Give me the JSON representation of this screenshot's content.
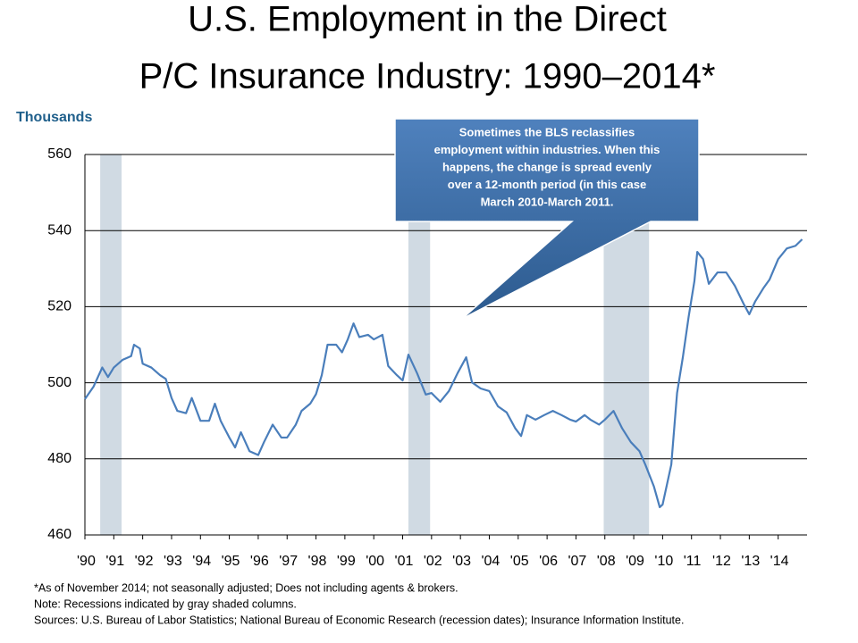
{
  "chart_data": {
    "type": "line",
    "title": [
      "U.S. Employment in the Direct",
      "P/C Insurance Industry: 1990–2014*"
    ],
    "y_label": "Thousands",
    "x": [
      1990.0,
      1990.3,
      1990.6,
      1990.8,
      1991.0,
      1991.3,
      1991.6,
      1991.7,
      1991.9,
      1992.0,
      1992.3,
      1992.6,
      1992.8,
      1993.0,
      1993.2,
      1993.5,
      1993.7,
      1994.0,
      1994.3,
      1994.5,
      1994.7,
      1995.0,
      1995.2,
      1995.4,
      1995.7,
      1996.0,
      1996.2,
      1996.5,
      1996.8,
      1997.0,
      1997.3,
      1997.5,
      1997.8,
      1998.0,
      1998.2,
      1998.4,
      1998.7,
      1998.9,
      1999.1,
      1999.3,
      1999.5,
      1999.8,
      2000.0,
      2000.3,
      2000.5,
      2000.8,
      2001.0,
      2001.2,
      2001.5,
      2001.8,
      2002.0,
      2002.3,
      2002.6,
      2002.9,
      2003.2,
      2003.4,
      2003.7,
      2004.0,
      2004.3,
      2004.6,
      2004.9,
      2005.1,
      2005.3,
      2005.6,
      2005.9,
      2006.2,
      2006.5,
      2006.8,
      2007.0,
      2007.3,
      2007.5,
      2007.8,
      2008.0,
      2008.3,
      2008.6,
      2008.9,
      2009.2,
      2009.4,
      2009.7,
      2009.9,
      2010.0,
      2010.3,
      2010.5,
      2010.7,
      2010.9,
      2011.1,
      2011.2,
      2011.4,
      2011.6,
      2011.9,
      2012.2,
      2012.5,
      2012.8,
      2013.0,
      2013.2,
      2013.5,
      2013.7,
      2014.0,
      2014.3,
      2014.6,
      2014.83
    ],
    "values": [
      495.7,
      499,
      504,
      501.5,
      504,
      506,
      507,
      510,
      509,
      505,
      504,
      502,
      501,
      496,
      492.6,
      492,
      496,
      490,
      490,
      494.5,
      490,
      485.6,
      483,
      487,
      482,
      481,
      484.4,
      489,
      485.6,
      485.6,
      489,
      492.6,
      494.5,
      497,
      502,
      510,
      510,
      508,
      511.4,
      515.6,
      512,
      512.6,
      511.4,
      512.6,
      504.4,
      502,
      500.6,
      507.4,
      502.5,
      496.9,
      497.3,
      495,
      497.8,
      502.5,
      506.7,
      500.1,
      498.5,
      497.8,
      493.8,
      492.2,
      488,
      486,
      491.5,
      490.3,
      491.5,
      492.6,
      491.5,
      490.3,
      489.8,
      491.5,
      490.3,
      489,
      490.3,
      492.6,
      488,
      484.4,
      482,
      478.5,
      472.7,
      467.3,
      468,
      478.5,
      497.3,
      506.7,
      517.3,
      526.7,
      534.4,
      532.5,
      526,
      529,
      529,
      525.5,
      520.8,
      518,
      521.3,
      525,
      527.1,
      532.5,
      535.3,
      536,
      537.7
    ],
    "color": "#4a7ebb",
    "recessions": [
      [
        1990.53,
        1991.27
      ],
      [
        2001.2,
        2001.95
      ],
      [
        2007.96,
        2009.53
      ]
    ],
    "recession_color": "#d0dae3",
    "xlim": [
      1990,
      2015
    ],
    "xticks": [
      {
        "value": 1990,
        "label": "'90"
      },
      {
        "value": 1991,
        "label": "'91"
      },
      {
        "value": 1992,
        "label": "'92"
      },
      {
        "value": 1993,
        "label": "'93"
      },
      {
        "value": 1994,
        "label": "'94"
      },
      {
        "value": 1995,
        "label": "'95"
      },
      {
        "value": 1996,
        "label": "'96"
      },
      {
        "value": 1997,
        "label": "'97"
      },
      {
        "value": 1998,
        "label": "'98"
      },
      {
        "value": 1999,
        "label": "'99"
      },
      {
        "value": 2000,
        "label": "'00"
      },
      {
        "value": 2001,
        "label": "'01"
      },
      {
        "value": 2002,
        "label": "'02"
      },
      {
        "value": 2003,
        "label": "'03"
      },
      {
        "value": 2004,
        "label": "'04"
      },
      {
        "value": 2005,
        "label": "'05"
      },
      {
        "value": 2006,
        "label": "'06"
      },
      {
        "value": 2007,
        "label": "'07"
      },
      {
        "value": 2008,
        "label": "'08"
      },
      {
        "value": 2009,
        "label": "'09"
      },
      {
        "value": 2010,
        "label": "'10"
      },
      {
        "value": 2011,
        "label": "'11"
      },
      {
        "value": 2012,
        "label": "'12"
      },
      {
        "value": 2013,
        "label": "'13"
      },
      {
        "value": 2014,
        "label": "'14"
      }
    ],
    "ylim": [
      460,
      560
    ],
    "yticks": [
      460,
      480,
      500,
      520,
      540,
      560
    ],
    "grid": true,
    "annotation": [
      "Sometimes the BLS reclassifies",
      "employment within industries. When this",
      "happens, the change is spread evenly",
      "over a 12-month period (in this case",
      "March 2010-March 2011."
    ],
    "notes": [
      "*As of November 2014; not seasonally adjusted; Does not including agents & brokers.",
      "Note: Recessions indicated by gray shaded columns.",
      "Sources: U.S. Bureau of Labor Statistics;  National Bureau of Economic Research (recession dates); Insurance Information Institute."
    ]
  }
}
